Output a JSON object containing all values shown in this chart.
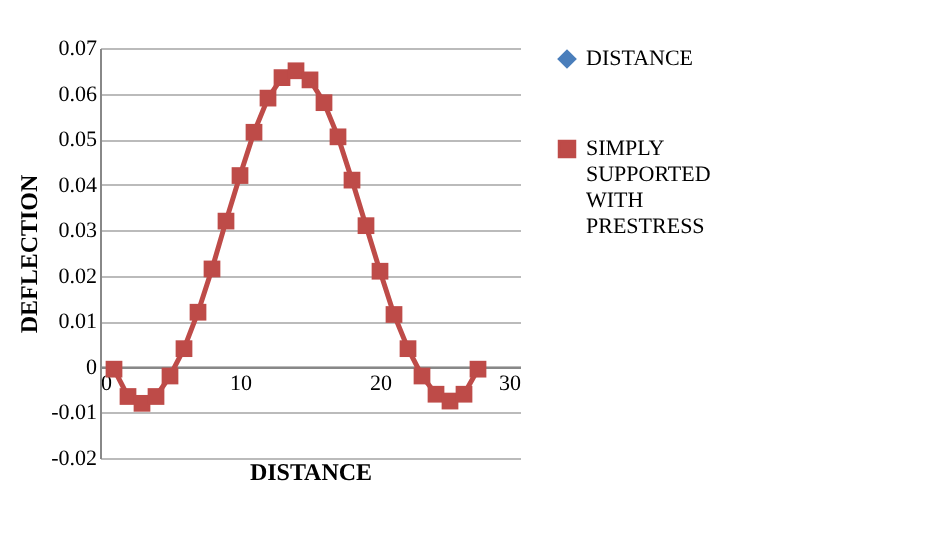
{
  "chart_data": {
    "type": "line",
    "xlabel": "DISTANCE",
    "ylabel": "DEFLECTION",
    "x": [
      1,
      2,
      3,
      4,
      5,
      6,
      7,
      8,
      9,
      10,
      11,
      12,
      13,
      14,
      15,
      16,
      17,
      18,
      19,
      20,
      21,
      22,
      23,
      24,
      25,
      26,
      27
    ],
    "series": [
      {
        "name": "DISTANCE",
        "color": "#4a7ebb",
        "marker": "diamond",
        "values": [
          null,
          null,
          null,
          null,
          null,
          null,
          null,
          null,
          null,
          null,
          null,
          null,
          null,
          null,
          null,
          null,
          null,
          null,
          null,
          null,
          null,
          null,
          null,
          null,
          null,
          null,
          null
        ]
      },
      {
        "name": "SIMPLY SUPPORTED WITH PRESTRESS",
        "color": "#be4b48",
        "marker": "square",
        "values": [
          -0.0005,
          -0.0065,
          -0.008,
          -0.0065,
          -0.002,
          0.004,
          0.012,
          0.0215,
          0.032,
          0.042,
          0.0515,
          0.059,
          0.0635,
          0.065,
          0.063,
          0.058,
          0.0505,
          0.041,
          0.031,
          0.021,
          0.0115,
          0.004,
          -0.002,
          -0.006,
          -0.0075,
          -0.006,
          -0.0005
        ]
      }
    ],
    "xlim": [
      0,
      30
    ],
    "xticks": [
      0,
      10,
      20,
      30
    ],
    "ylim": [
      -0.02,
      0.07
    ],
    "yticks": [
      -0.02,
      -0.01,
      0,
      0.01,
      0.02,
      0.03,
      0.04,
      0.05,
      0.06,
      0.07
    ],
    "grid": "y",
    "legend": "right"
  }
}
